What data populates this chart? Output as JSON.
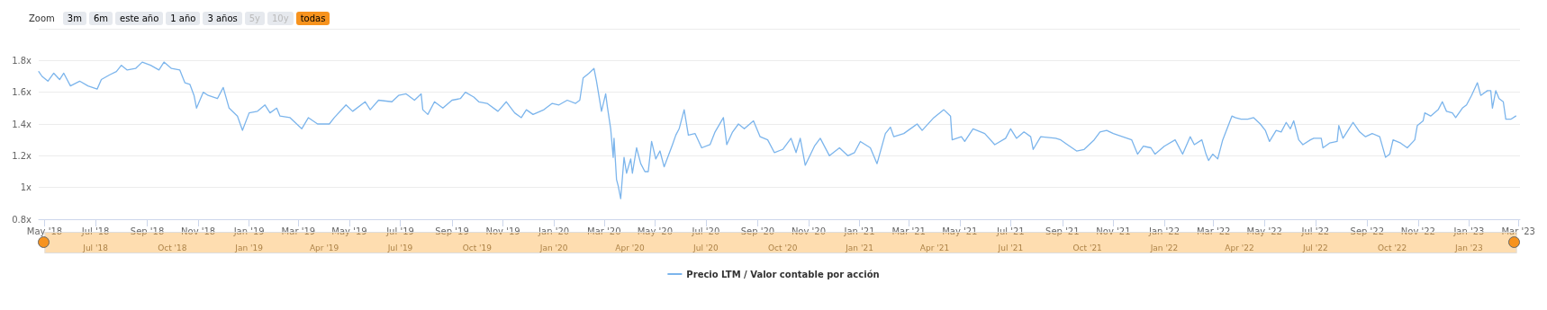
{
  "chart_data": {
    "type": "line",
    "legend": "bottom",
    "grid": "y",
    "marker": "none",
    "line_style": "solid",
    "annotations": [
      "Zoom",
      "3m",
      "6m",
      "este año",
      "1 año",
      "3 años",
      "5y",
      "10y",
      "todas"
    ],
    "xlim": [
      "2018-04-24",
      "2023-03-03"
    ],
    "ylim": [
      0.8,
      2.0
    ],
    "yticks": [
      {
        "value": 0.8,
        "label": "0.8x"
      },
      {
        "value": 1,
        "label": "1x"
      },
      {
        "value": 1.2,
        "label": "1.2x"
      },
      {
        "value": 1.4,
        "label": "1.4x"
      },
      {
        "value": 1.6,
        "label": "1.6x"
      },
      {
        "value": 1.8,
        "label": "1.8x"
      },
      {
        "value": 2,
        "label": null
      }
    ],
    "xticks": [
      {
        "value": "2018-05-01",
        "label": "May '18"
      },
      {
        "value": "2018-07-01",
        "label": "Jul '18"
      },
      {
        "value": "2018-09-01",
        "label": "Sep '18"
      },
      {
        "value": "2018-11-01",
        "label": "Nov '18"
      },
      {
        "value": "2019-01-01",
        "label": "Jan '19"
      },
      {
        "value": "2019-03-01",
        "label": "Mar '19"
      },
      {
        "value": "2019-05-01",
        "label": "May '19"
      },
      {
        "value": "2019-07-01",
        "label": "Jul '19"
      },
      {
        "value": "2019-09-01",
        "label": "Sep '19"
      },
      {
        "value": "2019-11-01",
        "label": "Nov '19"
      },
      {
        "value": "2020-01-01",
        "label": "Jan '20"
      },
      {
        "value": "2020-03-01",
        "label": "Mar '20"
      },
      {
        "value": "2020-05-01",
        "label": "May '20"
      },
      {
        "value": "2020-07-01",
        "label": "Jul '20"
      },
      {
        "value": "2020-09-01",
        "label": "Sep '20"
      },
      {
        "value": "2020-11-01",
        "label": "Nov '20"
      },
      {
        "value": "2021-01-01",
        "label": "Jan '21"
      },
      {
        "value": "2021-03-01",
        "label": "Mar '21"
      },
      {
        "value": "2021-05-01",
        "label": "May '21"
      },
      {
        "value": "2021-07-01",
        "label": "Jul '21"
      },
      {
        "value": "2021-09-01",
        "label": "Sep '21"
      },
      {
        "value": "2021-11-01",
        "label": "Nov '21"
      },
      {
        "value": "2022-01-01",
        "label": "Jan '22"
      },
      {
        "value": "2022-03-01",
        "label": "Mar '22"
      },
      {
        "value": "2022-05-01",
        "label": "May '22"
      },
      {
        "value": "2022-07-01",
        "label": "Jul '22"
      },
      {
        "value": "2022-09-01",
        "label": "Sep '22"
      },
      {
        "value": "2022-11-01",
        "label": "Nov '22"
      },
      {
        "value": "2023-01-01",
        "label": "Jan '23"
      },
      {
        "value": "2023-03-01",
        "label": "Mar '23"
      }
    ],
    "x2lim": [
      "2018-04-24",
      "2023-03-03"
    ],
    "x2ticks": [
      {
        "value": "2018-07-01",
        "label": "Jul '18"
      },
      {
        "value": "2018-10-01",
        "label": "Oct '18"
      },
      {
        "value": "2019-01-01",
        "label": "Jan '19"
      },
      {
        "value": "2019-04-01",
        "label": "Apr '19"
      },
      {
        "value": "2019-07-01",
        "label": "Jul '19"
      },
      {
        "value": "2019-10-01",
        "label": "Oct '19"
      },
      {
        "value": "2020-01-01",
        "label": "Jan '20"
      },
      {
        "value": "2020-04-01",
        "label": "Apr '20"
      },
      {
        "value": "2020-07-01",
        "label": "Jul '20"
      },
      {
        "value": "2020-10-01",
        "label": "Oct '20"
      },
      {
        "value": "2021-01-01",
        "label": "Jan '21"
      },
      {
        "value": "2021-04-01",
        "label": "Apr '21"
      },
      {
        "value": "2021-07-01",
        "label": "Jul '21"
      },
      {
        "value": "2021-10-01",
        "label": "Oct '21"
      },
      {
        "value": "2022-01-01",
        "label": "Jan '22"
      },
      {
        "value": "2022-04-01",
        "label": "Apr '22"
      },
      {
        "value": "2022-07-01",
        "label": "Jul '22"
      },
      {
        "value": "2022-10-01",
        "label": "Oct '22"
      },
      {
        "value": "2023-01-01",
        "label": "Jan '23"
      }
    ],
    "x": [
      "2018-04-24",
      "2018-04-28",
      "2018-05-05",
      "2018-05-12",
      "2018-05-19",
      "2018-05-24",
      "2018-06-01",
      "2018-06-12",
      "2018-06-22",
      "2018-07-03",
      "2018-07-08",
      "2018-07-18",
      "2018-07-26",
      "2018-08-01",
      "2018-08-08",
      "2018-08-18",
      "2018-08-26",
      "2018-09-05",
      "2018-09-15",
      "2018-09-21",
      "2018-09-30",
      "2018-10-10",
      "2018-10-16",
      "2018-10-22",
      "2018-10-27",
      "2018-10-30",
      "2018-11-07",
      "2018-11-13",
      "2018-11-24",
      "2018-12-01",
      "2018-12-08",
      "2018-12-18",
      "2018-12-24",
      "2019-01-01",
      "2019-01-11",
      "2019-01-20",
      "2019-01-26",
      "2019-02-03",
      "2019-02-07",
      "2019-02-19",
      "2019-03-05",
      "2019-03-13",
      "2019-03-24",
      "2019-04-07",
      "2019-04-13",
      "2019-04-27",
      "2019-05-05",
      "2019-05-20",
      "2019-05-26",
      "2019-06-05",
      "2019-06-21",
      "2019-06-29",
      "2019-07-08",
      "2019-07-18",
      "2019-07-26",
      "2019-07-28",
      "2019-08-03",
      "2019-08-11",
      "2019-08-21",
      "2019-09-01",
      "2019-09-11",
      "2019-09-17",
      "2019-09-27",
      "2019-10-03",
      "2019-10-13",
      "2019-10-26",
      "2019-11-05",
      "2019-11-15",
      "2019-11-23",
      "2019-11-29",
      "2019-12-07",
      "2019-12-20",
      "2019-12-30",
      "2020-01-07",
      "2020-01-17",
      "2020-01-27",
      "2020-02-01",
      "2020-02-05",
      "2020-02-12",
      "2020-02-18",
      "2020-02-21",
      "2020-02-27",
      "2020-03-03",
      "2020-03-05",
      "2020-03-09",
      "2020-03-12",
      "2020-03-13",
      "2020-03-16",
      "2020-03-18",
      "2020-03-21",
      "2020-03-25",
      "2020-03-28",
      "2020-04-02",
      "2020-04-04",
      "2020-04-09",
      "2020-04-14",
      "2020-04-19",
      "2020-04-23",
      "2020-04-27",
      "2020-05-02",
      "2020-05-07",
      "2020-05-12",
      "2020-05-22",
      "2020-05-26",
      "2020-05-30",
      "2020-06-05",
      "2020-06-10",
      "2020-06-18",
      "2020-06-26",
      "2020-07-06",
      "2020-07-12",
      "2020-07-22",
      "2020-07-26",
      "2020-08-02",
      "2020-08-09",
      "2020-08-16",
      "2020-08-27",
      "2020-09-04",
      "2020-09-13",
      "2020-09-21",
      "2020-10-01",
      "2020-10-11",
      "2020-10-17",
      "2020-10-22",
      "2020-10-28",
      "2020-11-08",
      "2020-11-15",
      "2020-11-26",
      "2020-12-08",
      "2020-12-18",
      "2020-12-26",
      "2021-01-02",
      "2021-01-14",
      "2021-01-22",
      "2021-02-01",
      "2021-02-07",
      "2021-02-11",
      "2021-02-23",
      "2021-03-11",
      "2021-03-17",
      "2021-03-31",
      "2021-04-12",
      "2021-04-20",
      "2021-04-22",
      "2021-05-03",
      "2021-05-07",
      "2021-05-17",
      "2021-05-31",
      "2021-06-12",
      "2021-06-25",
      "2021-07-01",
      "2021-07-08",
      "2021-07-17",
      "2021-07-25",
      "2021-07-28",
      "2021-08-06",
      "2021-08-24",
      "2021-08-30",
      "2021-09-07",
      "2021-09-18",
      "2021-09-27",
      "2021-10-03",
      "2021-10-09",
      "2021-10-16",
      "2021-10-24",
      "2021-11-01",
      "2021-11-12",
      "2021-11-23",
      "2021-11-30",
      "2021-12-07",
      "2021-12-16",
      "2021-12-21",
      "2022-01-01",
      "2022-01-14",
      "2022-01-23",
      "2022-02-01",
      "2022-02-06",
      "2022-02-15",
      "2022-02-20",
      "2022-02-23",
      "2022-02-28",
      "2022-03-06",
      "2022-03-12",
      "2022-03-23",
      "2022-03-27",
      "2022-04-03",
      "2022-04-11",
      "2022-04-18",
      "2022-04-26",
      "2022-05-02",
      "2022-05-07",
      "2022-05-15",
      "2022-05-21",
      "2022-05-27",
      "2022-06-01",
      "2022-06-05",
      "2022-06-11",
      "2022-06-16",
      "2022-06-25",
      "2022-06-29",
      "2022-07-08",
      "2022-07-10",
      "2022-07-18",
      "2022-07-27",
      "2022-07-29",
      "2022-08-03",
      "2022-08-09",
      "2022-08-15",
      "2022-08-23",
      "2022-08-30",
      "2022-09-07",
      "2022-09-16",
      "2022-09-23",
      "2022-09-28",
      "2022-10-02",
      "2022-10-11",
      "2022-10-19",
      "2022-10-28",
      "2022-10-31",
      "2022-11-07",
      "2022-11-09",
      "2022-11-16",
      "2022-11-25",
      "2022-11-30",
      "2022-12-05",
      "2022-12-12",
      "2022-12-16",
      "2022-12-24",
      "2022-12-29",
      "2023-01-04",
      "2023-01-11",
      "2023-01-15",
      "2023-01-23",
      "2023-01-27",
      "2023-01-29",
      "2023-02-02",
      "2023-02-06",
      "2023-02-11",
      "2023-02-14",
      "2023-02-20",
      "2023-02-26"
    ],
    "series": [
      {
        "name": "Precio LTM / Valor contable por acción",
        "color": "#7cb5ec",
        "values": [
          1.73,
          1.7,
          1.67,
          1.72,
          1.68,
          1.72,
          1.64,
          1.67,
          1.64,
          1.62,
          1.68,
          1.71,
          1.73,
          1.77,
          1.74,
          1.75,
          1.79,
          1.77,
          1.74,
          1.79,
          1.75,
          1.74,
          1.66,
          1.65,
          1.58,
          1.5,
          1.6,
          1.58,
          1.56,
          1.63,
          1.5,
          1.45,
          1.36,
          1.47,
          1.48,
          1.52,
          1.47,
          1.5,
          1.45,
          1.44,
          1.37,
          1.44,
          1.4,
          1.4,
          1.44,
          1.52,
          1.48,
          1.54,
          1.49,
          1.55,
          1.54,
          1.58,
          1.59,
          1.55,
          1.59,
          1.49,
          1.46,
          1.54,
          1.5,
          1.55,
          1.56,
          1.6,
          1.57,
          1.54,
          1.53,
          1.48,
          1.54,
          1.47,
          1.44,
          1.49,
          1.46,
          1.49,
          1.53,
          1.52,
          1.55,
          1.53,
          1.55,
          1.69,
          1.72,
          1.75,
          1.67,
          1.48,
          1.59,
          1.51,
          1.37,
          1.19,
          1.31,
          1.05,
          1.01,
          0.93,
          1.19,
          1.09,
          1.18,
          1.09,
          1.25,
          1.15,
          1.1,
          1.1,
          1.29,
          1.18,
          1.23,
          1.13,
          1.27,
          1.33,
          1.37,
          1.49,
          1.33,
          1.34,
          1.25,
          1.27,
          1.35,
          1.44,
          1.27,
          1.35,
          1.4,
          1.37,
          1.42,
          1.32,
          1.3,
          1.22,
          1.24,
          1.31,
          1.22,
          1.31,
          1.14,
          1.26,
          1.31,
          1.2,
          1.25,
          1.2,
          1.22,
          1.29,
          1.25,
          1.15,
          1.34,
          1.38,
          1.32,
          1.34,
          1.4,
          1.36,
          1.44,
          1.49,
          1.45,
          1.3,
          1.32,
          1.29,
          1.37,
          1.34,
          1.27,
          1.31,
          1.37,
          1.31,
          1.35,
          1.32,
          1.24,
          1.32,
          1.31,
          1.3,
          1.27,
          1.23,
          1.24,
          1.27,
          1.3,
          1.35,
          1.36,
          1.34,
          1.32,
          1.3,
          1.21,
          1.26,
          1.25,
          1.21,
          1.26,
          1.3,
          1.21,
          1.32,
          1.27,
          1.3,
          1.21,
          1.17,
          1.21,
          1.18,
          1.3,
          1.45,
          1.44,
          1.43,
          1.43,
          1.44,
          1.4,
          1.36,
          1.29,
          1.36,
          1.35,
          1.41,
          1.37,
          1.42,
          1.3,
          1.27,
          1.3,
          1.31,
          1.31,
          1.25,
          1.28,
          1.29,
          1.39,
          1.31,
          1.36,
          1.41,
          1.35,
          1.32,
          1.34,
          1.32,
          1.19,
          1.21,
          1.3,
          1.28,
          1.25,
          1.3,
          1.39,
          1.42,
          1.47,
          1.45,
          1.49,
          1.54,
          1.48,
          1.47,
          1.44,
          1.5,
          1.52,
          1.58,
          1.66,
          1.58,
          1.61,
          1.61,
          1.5,
          1.61,
          1.56,
          1.54,
          1.43,
          1.43,
          1.45
        ]
      }
    ]
  }
}
